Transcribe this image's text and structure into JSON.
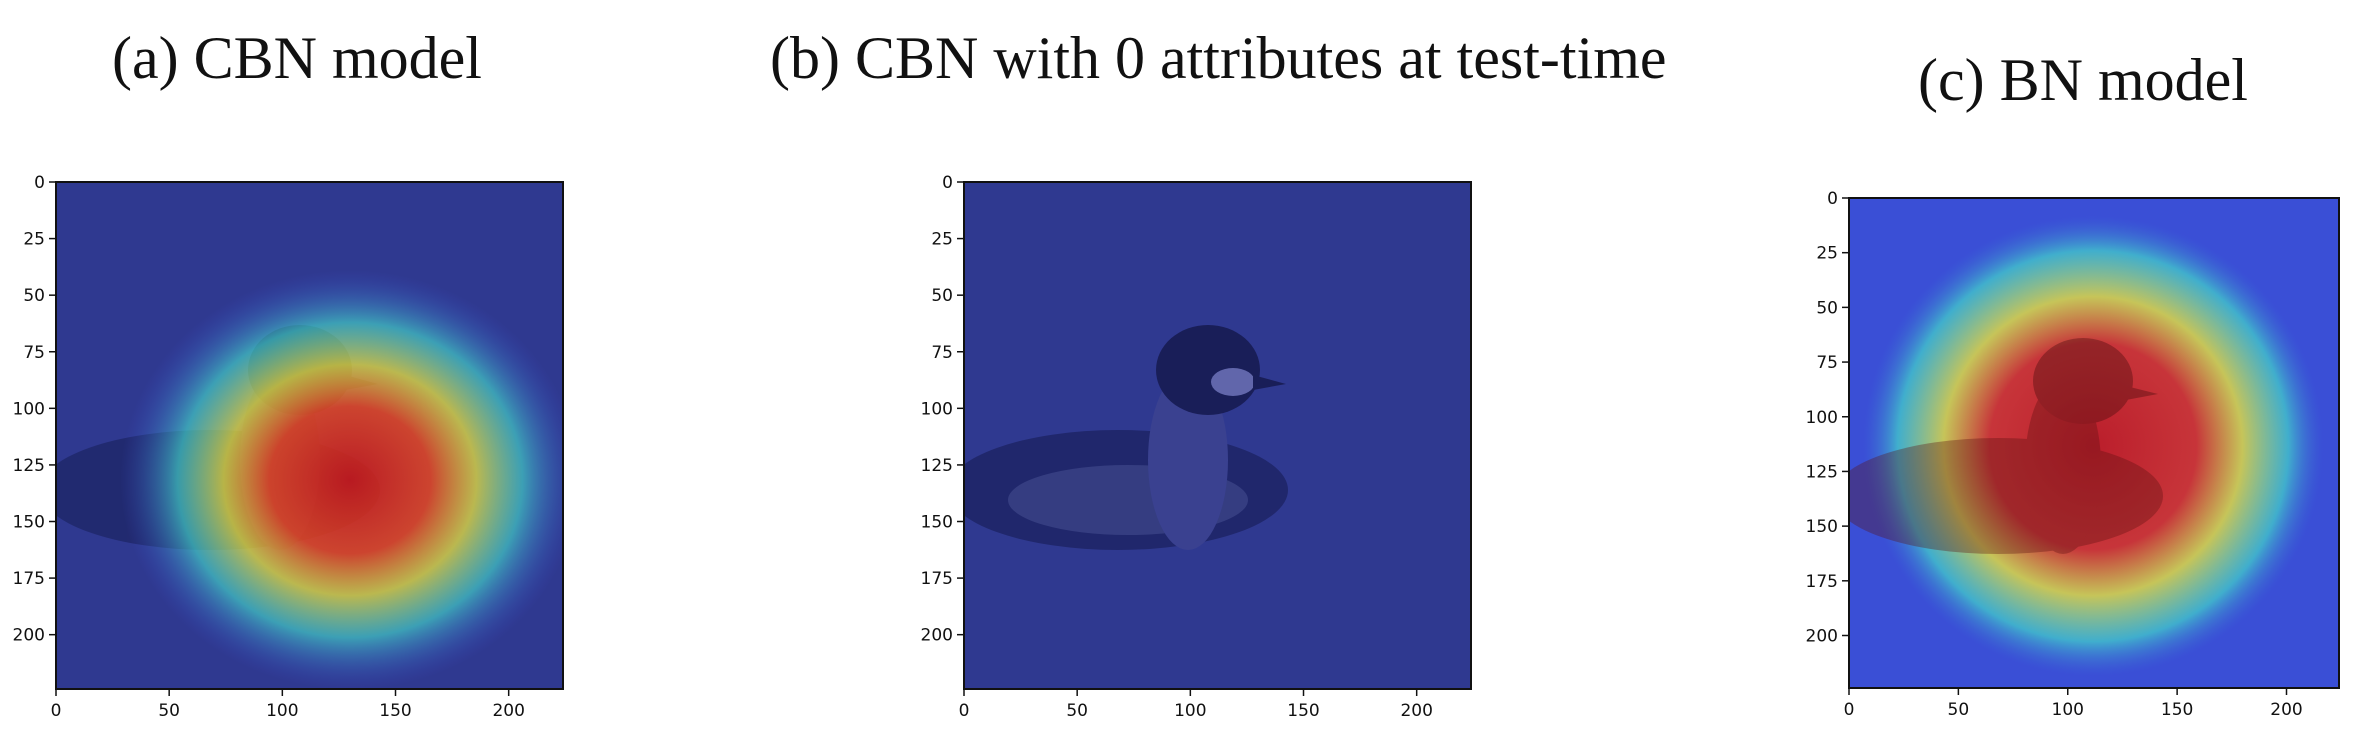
{
  "panels": [
    {
      "id": "a",
      "title": "(a) CBN model",
      "heatmap": "cbn-centered",
      "xticks": [
        "0",
        "50",
        "100",
        "150",
        "200"
      ],
      "yticks": [
        "0",
        "25",
        "50",
        "75",
        "100",
        "125",
        "150",
        "175",
        "200"
      ]
    },
    {
      "id": "b",
      "title": "(b) CBN with 0 attributes at test-time",
      "heatmap": "none",
      "xticks": [
        "0",
        "50",
        "100",
        "150",
        "200"
      ],
      "yticks": [
        "0",
        "25",
        "50",
        "75",
        "100",
        "125",
        "150",
        "175",
        "200"
      ]
    },
    {
      "id": "c",
      "title": "(c) BN model",
      "heatmap": "bn-wide",
      "xticks": [
        "0",
        "50",
        "100",
        "150",
        "200"
      ],
      "yticks": [
        "0",
        "25",
        "50",
        "75",
        "100",
        "125",
        "150",
        "175",
        "200"
      ]
    }
  ],
  "colors": {
    "water": "#2f3990",
    "heat_low": "#3a4fd6",
    "heat_mid": "#43d7c9",
    "heat_yellow": "#e6e33a",
    "heat_high": "#d81e1e"
  }
}
